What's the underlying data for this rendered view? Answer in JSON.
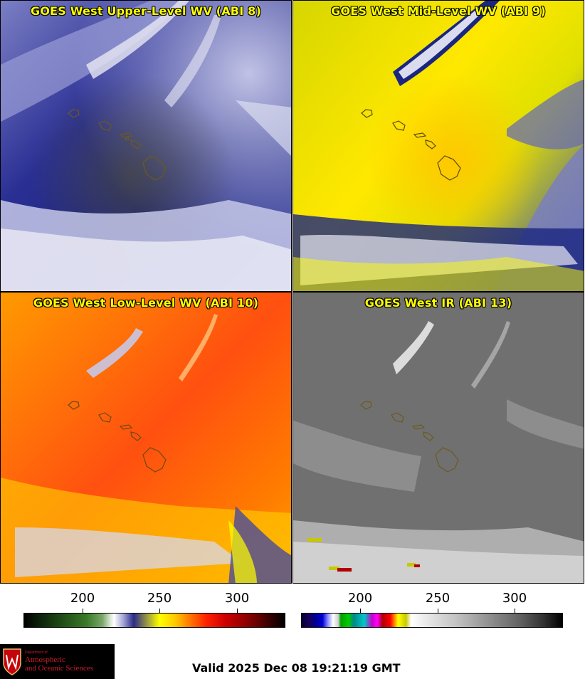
{
  "panels": {
    "p8": {
      "title": "GOES West Upper-Level WV (ABI 8)"
    },
    "p9": {
      "title": "GOES West Mid-Level WV (ABI 9)"
    },
    "p10": {
      "title": "GOES West Low-Level WV (ABI 10)"
    },
    "p13": {
      "title": "GOES West IR (ABI 13)"
    }
  },
  "colorbars": {
    "wv": {
      "ticks": [
        "200",
        "250",
        "300"
      ]
    },
    "ir": {
      "ticks": [
        "200",
        "250",
        "300"
      ]
    }
  },
  "logo": {
    "dept": "Department of",
    "line1": "Atmospheric",
    "line2": "and Oceanic Sciences"
  },
  "valid_time": "Valid 2025 Dec 08 19:21:19 GMT",
  "colors": {
    "title_text": "#ffff00",
    "coastline": "#6b5a1e",
    "logo_red": "#d21c2c"
  }
}
